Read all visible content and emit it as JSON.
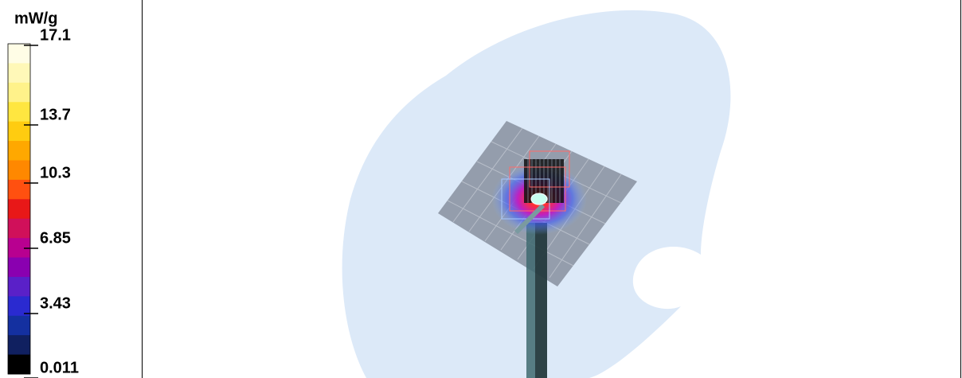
{
  "colorbar": {
    "unit": "mW/g",
    "ticks": [
      17.1,
      13.7,
      10.3,
      6.85,
      3.43,
      0.011
    ]
  }
}
